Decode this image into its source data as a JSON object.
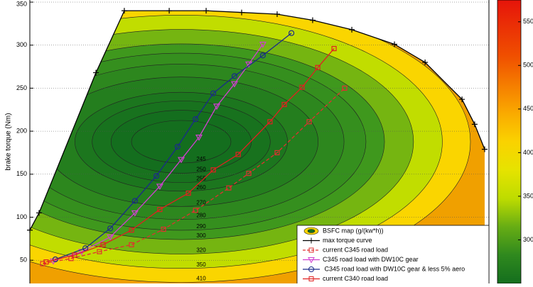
{
  "chart_data": {
    "type": "contour",
    "ylabel": "brake torque (Nm)",
    "xlim": [
      1000,
      3250
    ],
    "ylim": [
      23,
      350
    ],
    "yticks": [
      50,
      100,
      150,
      200,
      250,
      300,
      350
    ],
    "grid": true,
    "legend_loc": "lower right",
    "contour": {
      "name": "BSFC map (g/(kw*h))",
      "levels": [
        245,
        250,
        255,
        260,
        270,
        280,
        290,
        300,
        320,
        350,
        410
      ],
      "clim": [
        250,
        575
      ],
      "cticks": [
        300,
        350,
        400,
        450,
        500,
        550
      ]
    },
    "series": [
      {
        "name": "max torque curve",
        "color": "#000000",
        "marker": "plus",
        "linestyle": "solid",
        "x": [
          1000,
          1045,
          1324,
          1463,
          1683,
          1864,
          2038,
          2212,
          2386,
          2578,
          2787,
          2937,
          3118,
          3180,
          3229
        ],
        "values": [
          85,
          105,
          268,
          340,
          340,
          340,
          338,
          336,
          329,
          318,
          301,
          280,
          237,
          208,
          179
        ]
      },
      {
        "name": "current C345 road load",
        "color": "#e03030",
        "marker": "square",
        "linestyle": "dashed",
        "x": [
          1063,
          1202,
          1341,
          1498,
          1655,
          1812,
          1975,
          2073,
          2212,
          2369,
          2543
        ],
        "values": [
          46,
          52,
          60,
          68,
          86,
          108,
          134,
          151,
          175,
          211,
          250
        ]
      },
      {
        "name": "C345 road load with DW10C gear",
        "color": "#d040d0",
        "marker": "triangle",
        "linestyle": "solid",
        "x": [
          1115,
          1254,
          1394,
          1515,
          1637,
          1742,
          1829,
          1916,
          2003,
          2073,
          2142
        ],
        "values": [
          49,
          60,
          77,
          105,
          136,
          167,
          193,
          229,
          255,
          278,
          301
        ]
      },
      {
        "name": " C345 road load with DW10C gear & less 5% aero",
        "color": "#1a2a8a",
        "marker": "circle",
        "linestyle": "solid",
        "x": [
          1125,
          1272,
          1394,
          1515,
          1620,
          1724,
          1812,
          1899,
          2003,
          2142,
          2282
        ],
        "values": [
          51,
          64,
          87,
          119,
          148,
          182,
          214,
          244,
          264,
          288,
          314
        ]
      },
      {
        "name": "current C340 road load",
        "color": "#e02020",
        "marker": "square",
        "linestyle": "solid",
        "x": [
          1080,
          1219,
          1359,
          1498,
          1637,
          1777,
          1899,
          2021,
          2177,
          2247,
          2334,
          2411,
          2491
        ],
        "values": [
          48,
          56,
          68,
          85,
          109,
          128,
          155,
          173,
          211,
          231,
          251,
          274,
          296
        ]
      }
    ]
  }
}
